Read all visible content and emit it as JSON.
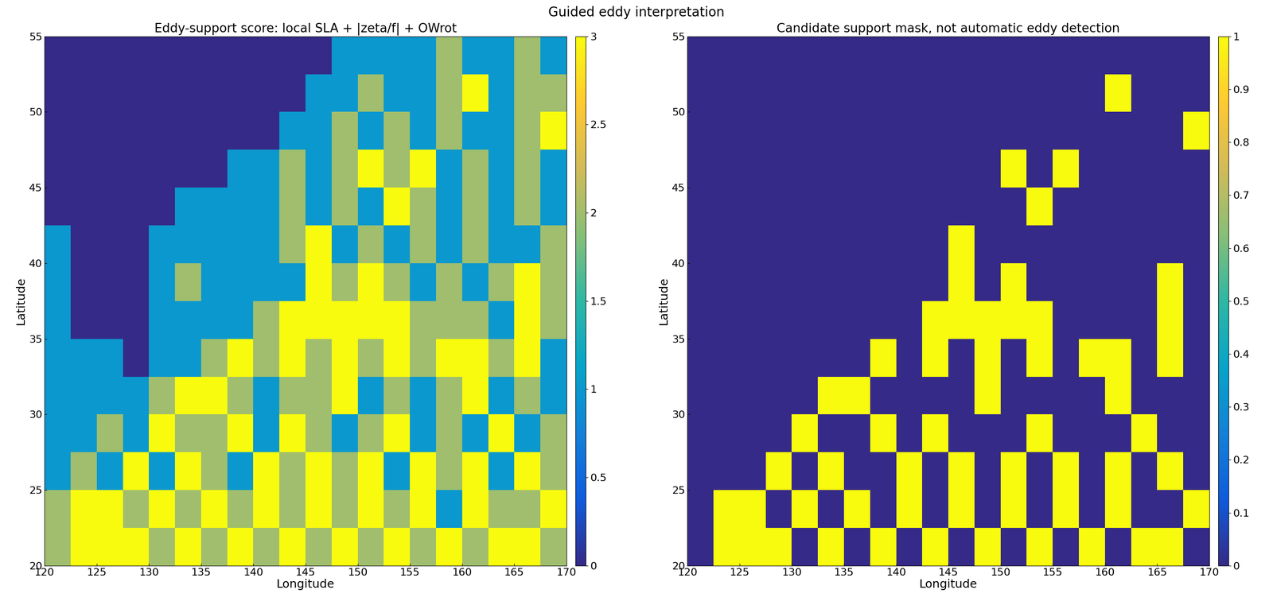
{
  "title": "Guided eddy interpretation",
  "chart_data": [
    {
      "type": "heatmap",
      "title": "Eddy-support score: local SLA + |zeta/f| + OWrot",
      "x_label": "Longitude",
      "y_label": "Latitude",
      "xlim": [
        120,
        170
      ],
      "ylim": [
        20,
        55
      ],
      "xticks": [
        120,
        125,
        130,
        135,
        140,
        145,
        150,
        155,
        160,
        165,
        170
      ],
      "yticks": [
        20,
        25,
        30,
        35,
        40,
        45,
        50,
        55
      ],
      "cells": [
        [
          2,
          3,
          3,
          3,
          2,
          3,
          2,
          3,
          2,
          3,
          2,
          3,
          2,
          3,
          2,
          3,
          2,
          3,
          3,
          2
        ],
        [
          2,
          3,
          3,
          2,
          3,
          2,
          3,
          2,
          3,
          2,
          3,
          2,
          3,
          2,
          3,
          1,
          3,
          2,
          2,
          3
        ],
        [
          1,
          2,
          1,
          3,
          1,
          3,
          2,
          1,
          3,
          2,
          3,
          2,
          3,
          1,
          3,
          2,
          3,
          1,
          3,
          2
        ],
        [
          1,
          1,
          2,
          1,
          3,
          2,
          2,
          3,
          1,
          3,
          2,
          1,
          2,
          3,
          1,
          2,
          1,
          3,
          1,
          2
        ],
        [
          1,
          1,
          1,
          1,
          2,
          3,
          3,
          2,
          1,
          2,
          2,
          3,
          1,
          2,
          1,
          2,
          3,
          1,
          2,
          1
        ],
        [
          1,
          1,
          1,
          0,
          1,
          1,
          2,
          3,
          2,
          3,
          2,
          3,
          2,
          3,
          2,
          3,
          3,
          2,
          3,
          1
        ],
        [
          1,
          0,
          0,
          0,
          1,
          1,
          1,
          1,
          2,
          3,
          3,
          3,
          3,
          3,
          2,
          2,
          2,
          1,
          3,
          2
        ],
        [
          1,
          0,
          0,
          0,
          1,
          2,
          1,
          1,
          1,
          1,
          3,
          2,
          3,
          2,
          1,
          2,
          1,
          2,
          3,
          2
        ],
        [
          1,
          0,
          0,
          0,
          1,
          1,
          1,
          1,
          1,
          2,
          3,
          1,
          2,
          1,
          2,
          1,
          2,
          1,
          1,
          2
        ],
        [
          0,
          0,
          0,
          0,
          0,
          1,
          1,
          1,
          1,
          2,
          1,
          2,
          1,
          3,
          2,
          1,
          2,
          1,
          2,
          1
        ],
        [
          0,
          0,
          0,
          0,
          0,
          0,
          0,
          1,
          1,
          2,
          1,
          2,
          3,
          2,
          3,
          1,
          2,
          1,
          2,
          1
        ],
        [
          0,
          0,
          0,
          0,
          0,
          0,
          0,
          0,
          0,
          1,
          1,
          2,
          1,
          2,
          1,
          2,
          1,
          1,
          2,
          3
        ],
        [
          0,
          0,
          0,
          0,
          0,
          0,
          0,
          0,
          0,
          0,
          1,
          1,
          2,
          1,
          1,
          2,
          3,
          1,
          2,
          2
        ],
        [
          0,
          0,
          0,
          0,
          0,
          0,
          0,
          0,
          0,
          0,
          0,
          1,
          1,
          1,
          1,
          2,
          1,
          1,
          2,
          1
        ]
      ],
      "colorbar": {
        "range": [
          0,
          3
        ],
        "ticks": [
          0,
          0.5,
          1,
          1.5,
          2,
          2.5,
          3
        ]
      }
    },
    {
      "type": "heatmap",
      "title": "Candidate support mask, not automatic eddy detection",
      "x_label": "Longitude",
      "y_label": "Latitude",
      "xlim": [
        120,
        170
      ],
      "ylim": [
        20,
        55
      ],
      "xticks": [
        120,
        125,
        130,
        135,
        140,
        145,
        150,
        155,
        160,
        165,
        170
      ],
      "yticks": [
        20,
        25,
        30,
        35,
        40,
        45,
        50,
        55
      ],
      "cells": [
        [
          0,
          1,
          1,
          1,
          0,
          1,
          0,
          1,
          0,
          1,
          0,
          1,
          0,
          1,
          0,
          1,
          0,
          1,
          1,
          0
        ],
        [
          0,
          1,
          1,
          0,
          1,
          0,
          1,
          0,
          1,
          0,
          1,
          0,
          1,
          0,
          1,
          0,
          1,
          0,
          0,
          1
        ],
        [
          0,
          0,
          0,
          1,
          0,
          1,
          0,
          0,
          1,
          0,
          1,
          0,
          1,
          0,
          1,
          0,
          1,
          0,
          1,
          0
        ],
        [
          0,
          0,
          0,
          0,
          1,
          0,
          0,
          1,
          0,
          1,
          0,
          0,
          0,
          1,
          0,
          0,
          0,
          1,
          0,
          0
        ],
        [
          0,
          0,
          0,
          0,
          0,
          1,
          1,
          0,
          0,
          0,
          0,
          1,
          0,
          0,
          0,
          0,
          1,
          0,
          0,
          0
        ],
        [
          0,
          0,
          0,
          0,
          0,
          0,
          0,
          1,
          0,
          1,
          0,
          1,
          0,
          1,
          0,
          1,
          1,
          0,
          1,
          0
        ],
        [
          0,
          0,
          0,
          0,
          0,
          0,
          0,
          0,
          0,
          1,
          1,
          1,
          1,
          1,
          0,
          0,
          0,
          0,
          1,
          0
        ],
        [
          0,
          0,
          0,
          0,
          0,
          0,
          0,
          0,
          0,
          0,
          1,
          0,
          1,
          0,
          0,
          0,
          0,
          0,
          1,
          0
        ],
        [
          0,
          0,
          0,
          0,
          0,
          0,
          0,
          0,
          0,
          0,
          1,
          0,
          0,
          0,
          0,
          0,
          0,
          0,
          0,
          0
        ],
        [
          0,
          0,
          0,
          0,
          0,
          0,
          0,
          0,
          0,
          0,
          0,
          0,
          0,
          1,
          0,
          0,
          0,
          0,
          0,
          0
        ],
        [
          0,
          0,
          0,
          0,
          0,
          0,
          0,
          0,
          0,
          0,
          0,
          0,
          1,
          0,
          1,
          0,
          0,
          0,
          0,
          0
        ],
        [
          0,
          0,
          0,
          0,
          0,
          0,
          0,
          0,
          0,
          0,
          0,
          0,
          0,
          0,
          0,
          0,
          0,
          0,
          0,
          1
        ],
        [
          0,
          0,
          0,
          0,
          0,
          0,
          0,
          0,
          0,
          0,
          0,
          0,
          0,
          0,
          0,
          0,
          1,
          0,
          0,
          0
        ],
        [
          0,
          0,
          0,
          0,
          0,
          0,
          0,
          0,
          0,
          0,
          0,
          0,
          0,
          0,
          0,
          0,
          0,
          0,
          0,
          0
        ]
      ],
      "colorbar": {
        "range": [
          0,
          1
        ],
        "ticks": [
          0,
          0.1,
          0.2,
          0.3,
          0.4,
          0.5,
          0.6,
          0.7,
          0.8,
          0.9,
          1
        ]
      }
    }
  ]
}
